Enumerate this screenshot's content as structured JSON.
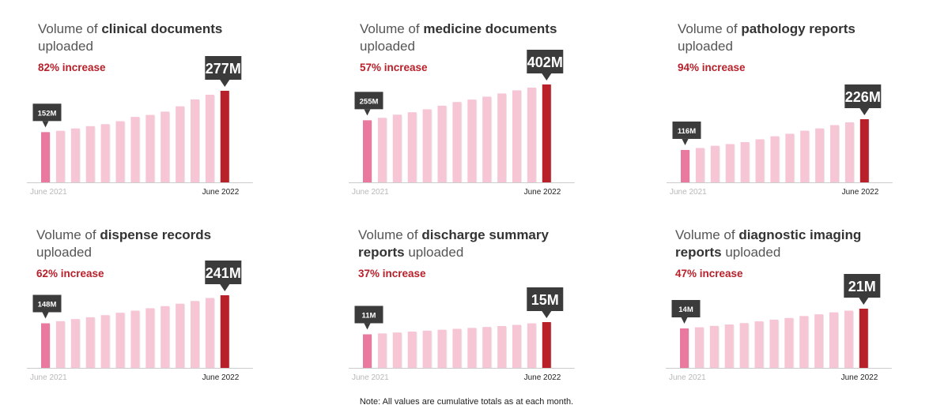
{
  "colors": {
    "start_bar": "#e9799f",
    "mid_bar": "#f7c6d4",
    "end_bar": "#b8202a",
    "callout_bg": "#3b3b3b",
    "increase_text": "#b8202a"
  },
  "note": "Note: All values are cumulative totals as at each month.",
  "chart_data": [
    {
      "type": "bar",
      "title_prefix": "Volume of ",
      "title_bold": "clinical documents",
      "title_suffix": "uploaded",
      "increase_label": "82% increase",
      "x_start_label": "June 2021",
      "x_end_label": "June 2022",
      "start_callout": "152M",
      "end_callout": "277M",
      "values": [
        152,
        156,
        163,
        170,
        176,
        185,
        198,
        204,
        214,
        230,
        251,
        265,
        277
      ]
    },
    {
      "type": "bar",
      "title_prefix": "Volume of ",
      "title_bold": "medicine documents",
      "title_suffix": "uploaded",
      "increase_label": "57% increase",
      "x_start_label": "June 2021",
      "x_end_label": "June 2022",
      "start_callout": "255M",
      "end_callout": "402M",
      "values": [
        255,
        265,
        278,
        288,
        300,
        315,
        330,
        340,
        352,
        365,
        378,
        389,
        402
      ]
    },
    {
      "type": "bar",
      "title_prefix": "Volume of ",
      "title_bold": "pathology reports",
      "title_suffix": "uploaded",
      "increase_label": "94% increase",
      "x_start_label": "June 2021",
      "x_end_label": "June 2022",
      "start_callout": "116M",
      "end_callout": "226M",
      "values": [
        116,
        123,
        131,
        137,
        144,
        154,
        165,
        174,
        185,
        193,
        205,
        215,
        226
      ]
    },
    {
      "type": "bar",
      "title_prefix": "Volume of ",
      "title_bold": "dispense records",
      "title_suffix": "uploaded",
      "increase_label": "62% increase",
      "x_start_label": "June 2021",
      "x_end_label": "June 2022",
      "start_callout": "148M",
      "end_callout": "241M",
      "values": [
        148,
        155,
        162,
        168,
        175,
        183,
        190,
        198,
        205,
        213,
        222,
        232,
        241
      ]
    },
    {
      "type": "bar",
      "title_prefix": "Volume of ",
      "title_bold": "discharge summary",
      "title_bold_2": "reports",
      "title_suffix": "uploaded",
      "increase_label": "37% increase",
      "x_start_label": "June 2021",
      "x_end_label": "June 2022",
      "start_callout": "11M",
      "end_callout": "15M",
      "values": [
        11,
        11.3,
        11.6,
        11.9,
        12.2,
        12.5,
        12.8,
        13.1,
        13.4,
        13.7,
        14.1,
        14.6,
        15
      ]
    },
    {
      "type": "bar",
      "title_prefix": "Volume of ",
      "title_bold": "diagnostic imaging",
      "title_bold_2": "reports",
      "title_suffix": "uploaded",
      "increase_label": "47% increase",
      "x_start_label": "June 2021",
      "x_end_label": "June 2022",
      "start_callout": "14M",
      "end_callout": "21M",
      "values": [
        14,
        14.4,
        14.9,
        15.4,
        15.9,
        16.5,
        17.1,
        17.7,
        18.4,
        19.0,
        19.7,
        20.3,
        21
      ]
    }
  ]
}
